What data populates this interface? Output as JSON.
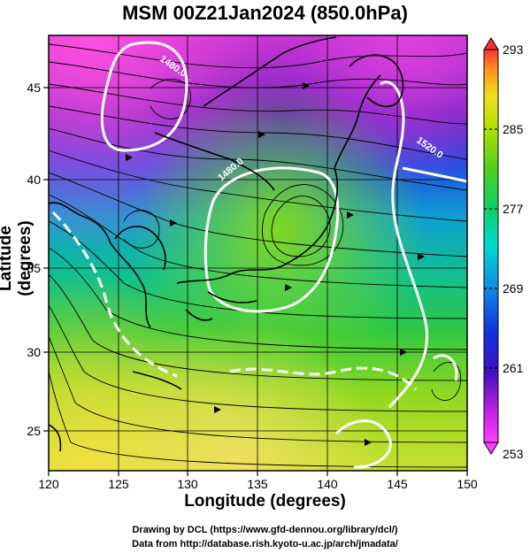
{
  "title": "MSM 00Z21Jan2024 (850.0hPa)",
  "x_axis": {
    "label": "Longitude (degrees)",
    "ticks": [
      "120",
      "125",
      "130",
      "135",
      "140",
      "145",
      "150"
    ]
  },
  "y_axis": {
    "label": "Latitude  (degrees)",
    "ticks": [
      "25",
      "30",
      "35",
      "40",
      "45"
    ]
  },
  "colorbar": {
    "ticks": [
      "293",
      "285",
      "277",
      "269",
      "261",
      "253"
    ],
    "min": 253,
    "max": 293
  },
  "contour_labels": [
    "1480.0",
    "1520.0",
    "1480.0"
  ],
  "credits": {
    "line1": "Drawing by DCL (https://www.gfd-dennou.org/library/dcl/)",
    "line2": "Data from http://database.rish.kyoto-u.ac.jp/arch/jmadata/"
  },
  "chart_data": {
    "type": "map",
    "field": "temperature (K) with streamlines, 850 hPa",
    "xlim": [
      120,
      150
    ],
    "ylim": [
      23,
      48
    ],
    "color_range": [
      253,
      293
    ]
  }
}
